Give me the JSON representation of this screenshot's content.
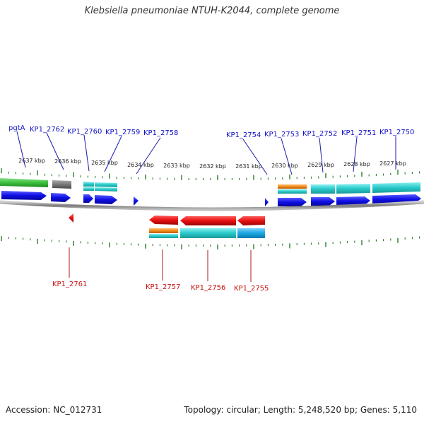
{
  "title": "Klebsiella pneumoniae NTUH-K2044, complete genome",
  "footer": {
    "accession": "Accession: NC_012731",
    "summary": "Topology: circular; Length: 5,248,520 bp; Genes: 5,110"
  },
  "scale": {
    "unit": "kbp",
    "ticks": [
      "2637 kbp",
      "2636 kbp",
      "2635 kbp",
      "2634 kbp",
      "2633 kbp",
      "2632 kbp",
      "2631 kbp",
      "2630 kbp",
      "2629 kbp",
      "2628 kbp",
      "2627 kbp"
    ]
  },
  "colors": {
    "forward_cds": "#1010e0",
    "reverse_cds": "#e01010",
    "forward_label": "#0000c8",
    "reverse_label": "#c80000",
    "tick": "#2a7a2a",
    "backbone": "#888888",
    "gene_feature": "#3cbf3c",
    "cyan_feature": "#28c8c8",
    "blue_feature": "#1aa8e0",
    "orange_feature": "#f08a1a",
    "gray_feature": "#777777"
  },
  "genes": {
    "forward": [
      {
        "name": "pgtA",
        "strand": "+"
      },
      {
        "name": "KP1_2762",
        "strand": "+"
      },
      {
        "name": "KP1_2760",
        "strand": "+"
      },
      {
        "name": "KP1_2759",
        "strand": "+"
      },
      {
        "name": "KP1_2758",
        "strand": "+"
      },
      {
        "name": "KP1_2754",
        "strand": "+"
      },
      {
        "name": "KP1_2753",
        "strand": "+"
      },
      {
        "name": "KP1_2752",
        "strand": "+"
      },
      {
        "name": "KP1_2751",
        "strand": "+"
      },
      {
        "name": "KP1_2750",
        "strand": "+"
      }
    ],
    "reverse": [
      {
        "name": "KP1_2761",
        "strand": "-"
      },
      {
        "name": "KP1_2757",
        "strand": "-"
      },
      {
        "name": "KP1_2756",
        "strand": "-"
      },
      {
        "name": "KP1_2755",
        "strand": "-"
      }
    ]
  }
}
